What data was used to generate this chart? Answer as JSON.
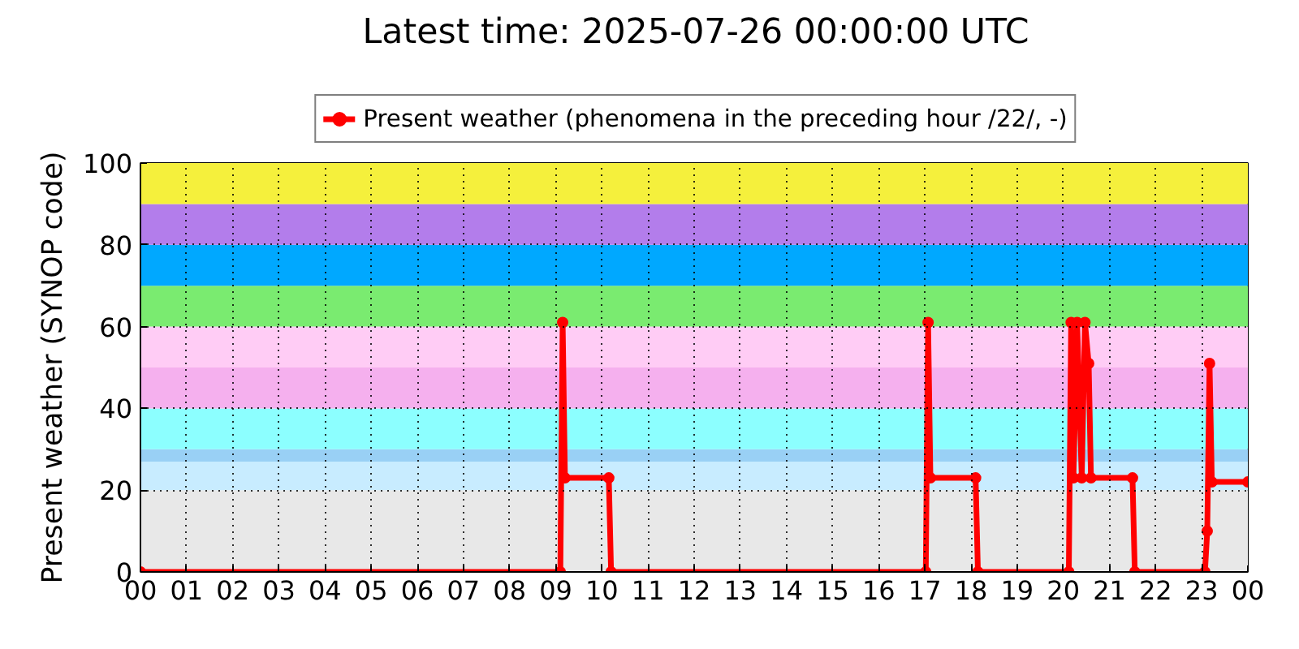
{
  "chart_data": {
    "type": "line",
    "title": "Latest time: 2025-07-26 00:00:00 UTC",
    "ylabel": "Present weather (SYNOP code)",
    "x": [
      0,
      9.1,
      9.15,
      9.2,
      10.15,
      10.2,
      17.02,
      17.07,
      17.12,
      18.1,
      18.15,
      20.12,
      20.17,
      20.22,
      20.3,
      20.4,
      20.47,
      20.55,
      20.6,
      21.5,
      21.55,
      23.07,
      23.12,
      23.17,
      23.22,
      24
    ],
    "series": [
      {
        "name": "Present weather (phenomena in the preceding hour /22/, -)",
        "color": "#ff0000",
        "values": [
          0,
          0,
          61,
          23,
          23,
          0,
          0,
          61,
          23,
          23,
          0,
          0,
          61,
          23,
          61,
          23,
          61,
          51,
          23,
          23,
          0,
          0,
          10,
          51,
          22,
          22
        ]
      }
    ],
    "xlim": [
      0,
      24
    ],
    "xticks": [
      {
        "value": 0,
        "label": "00"
      },
      {
        "value": 1,
        "label": "01"
      },
      {
        "value": 2,
        "label": "02"
      },
      {
        "value": 3,
        "label": "03"
      },
      {
        "value": 4,
        "label": "04"
      },
      {
        "value": 5,
        "label": "05"
      },
      {
        "value": 6,
        "label": "06"
      },
      {
        "value": 7,
        "label": "07"
      },
      {
        "value": 8,
        "label": "08"
      },
      {
        "value": 9,
        "label": "09"
      },
      10,
      11,
      12,
      13,
      14,
      15,
      16,
      17,
      18,
      19,
      20,
      21,
      22,
      23,
      {
        "value": 24,
        "label": "00"
      }
    ],
    "ylim": [
      0,
      100
    ],
    "yticks": [
      0,
      20,
      40,
      60,
      80,
      100
    ],
    "bands": [
      {
        "axis": "y",
        "from": 0,
        "to": 20,
        "color": "#e8e8e8"
      },
      {
        "axis": "y",
        "from": 20,
        "to": 27,
        "color": "#c8ecff"
      },
      {
        "axis": "y",
        "from": 27,
        "to": 30,
        "color": "#99d0f5"
      },
      {
        "axis": "y",
        "from": 30,
        "to": 40,
        "color": "#8cffff"
      },
      {
        "axis": "y",
        "from": 40,
        "to": 50,
        "color": "#f5b0ee"
      },
      {
        "axis": "y",
        "from": 50,
        "to": 60,
        "color": "#ffccf5"
      },
      {
        "axis": "y",
        "from": 60,
        "to": 70,
        "color": "#7aeb70"
      },
      {
        "axis": "y",
        "from": 70,
        "to": 80,
        "color": "#00a8ff"
      },
      {
        "axis": "y",
        "from": 80,
        "to": 90,
        "color": "#b37deb"
      },
      {
        "axis": "y",
        "from": 90,
        "to": 100,
        "color": "#f5f03c"
      }
    ],
    "grid": true,
    "legend": "top",
    "marker": "circle",
    "line_style": "solid"
  }
}
